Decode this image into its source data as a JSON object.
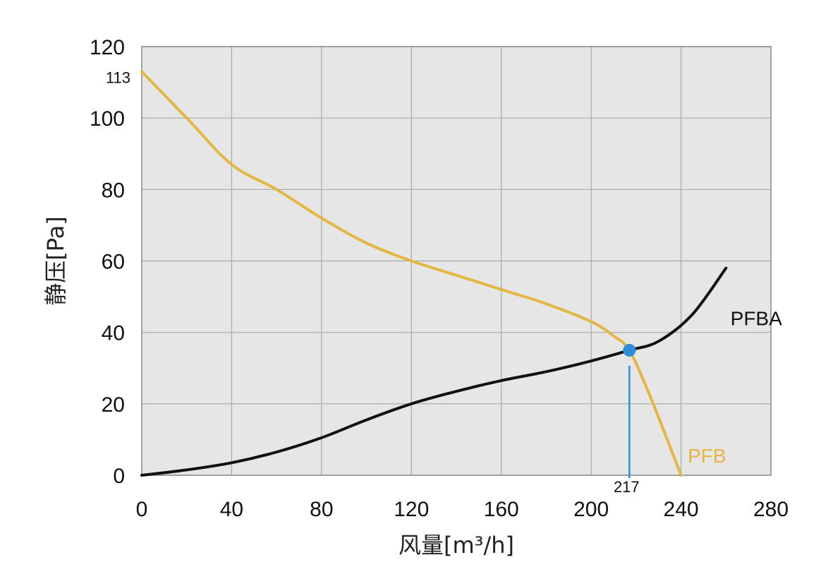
{
  "chart_data": {
    "type": "line",
    "xlabel": "风量[m³/h]",
    "ylabel": "静压[Pa]",
    "xlim": [
      0,
      280
    ],
    "ylim": [
      0,
      120
    ],
    "x_ticks": [
      "0",
      "40",
      "80",
      "120",
      "160",
      "200",
      "240",
      "280"
    ],
    "y_ticks": [
      "0",
      "20",
      "40",
      "60",
      "80",
      "100",
      "120"
    ],
    "grid": true,
    "background": "#e6e6e6",
    "series": [
      {
        "name": "PFB",
        "color": "#e4b642",
        "x": [
          0,
          20,
          40,
          60,
          80,
          100,
          120,
          140,
          160,
          180,
          200,
          210,
          217,
          225,
          232,
          240
        ],
        "y": [
          113,
          100,
          87,
          80,
          72,
          65,
          60,
          56,
          52,
          48,
          43,
          39,
          35,
          24,
          13,
          0
        ]
      },
      {
        "name": "PFBA",
        "color": "#111111",
        "x": [
          0,
          20,
          40,
          60,
          80,
          100,
          120,
          140,
          160,
          180,
          200,
          217,
          230,
          245,
          260
        ],
        "y": [
          0,
          1.5,
          3.5,
          6.5,
          10.5,
          15.5,
          20,
          23.5,
          26.5,
          29,
          32,
          35,
          37.5,
          45,
          58
        ]
      }
    ],
    "annotations": {
      "y_value_label": "113",
      "operating_point": {
        "x": 217,
        "y": 35,
        "color": "#2a8fd6"
      },
      "x_value_label": "217"
    }
  }
}
